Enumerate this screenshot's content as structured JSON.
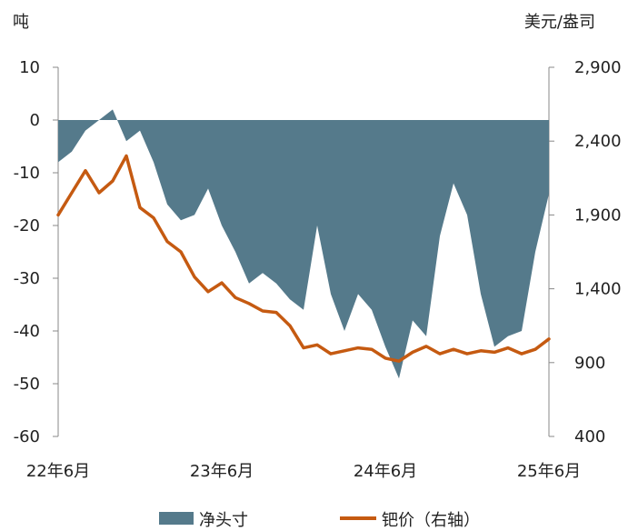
{
  "chart_data": {
    "type": "area",
    "left_unit": "吨",
    "right_unit": "美元/盎司",
    "left_axis": {
      "min": -60,
      "max": 10,
      "ticks": [
        10,
        0,
        -10,
        -20,
        -30,
        -40,
        -50,
        -60
      ],
      "tick_labels": [
        "10",
        "0",
        "-10",
        "-20",
        "-30",
        "-40",
        "-50",
        "-60"
      ]
    },
    "right_axis": {
      "min": 400,
      "max": 2900,
      "ticks": [
        2900,
        2400,
        1900,
        1400,
        900,
        400
      ],
      "tick_labels": [
        "2,900",
        "2,400",
        "1,900",
        "1,400",
        "900",
        "400"
      ]
    },
    "x_axis": {
      "start": "2022-06",
      "end": "2025-06",
      "tick_labels": [
        "22年6月",
        "23年6月",
        "24年6月",
        "25年6月"
      ]
    },
    "series": [
      {
        "name": "净头寸",
        "axis": "left",
        "color": "#557a8b",
        "x": [
          "2022-06",
          "2022-07",
          "2022-08",
          "2022-09",
          "2022-10",
          "2022-11",
          "2022-12",
          "2023-01",
          "2023-02",
          "2023-03",
          "2023-04",
          "2023-05",
          "2023-06",
          "2023-07",
          "2023-08",
          "2023-09",
          "2023-10",
          "2023-11",
          "2023-12",
          "2024-01",
          "2024-02",
          "2024-03",
          "2024-04",
          "2024-05",
          "2024-06",
          "2024-07",
          "2024-08",
          "2024-09",
          "2024-10",
          "2024-11",
          "2024-12",
          "2025-01",
          "2025-02",
          "2025-03",
          "2025-04",
          "2025-05",
          "2025-06"
        ],
        "values": [
          -8,
          -6,
          -2,
          0,
          2,
          -4,
          -2,
          -8,
          -16,
          -19,
          -18,
          -13,
          -20,
          -25,
          -31,
          -29,
          -31,
          -34,
          -36,
          -20,
          -33,
          -40,
          -33,
          -36,
          -43,
          -49,
          -38,
          -41,
          -22,
          -12,
          -18,
          -33,
          -43,
          -41,
          -40,
          -25,
          -14
        ]
      },
      {
        "name": "钯价（右轴）",
        "axis": "right",
        "color": "#c55a11",
        "x": [
          "2022-06",
          "2022-07",
          "2022-08",
          "2022-09",
          "2022-10",
          "2022-11",
          "2022-12",
          "2023-01",
          "2023-02",
          "2023-03",
          "2023-04",
          "2023-05",
          "2023-06",
          "2023-07",
          "2023-08",
          "2023-09",
          "2023-10",
          "2023-11",
          "2023-12",
          "2024-01",
          "2024-02",
          "2024-03",
          "2024-04",
          "2024-05",
          "2024-06",
          "2024-07",
          "2024-08",
          "2024-09",
          "2024-10",
          "2024-11",
          "2024-12",
          "2025-01",
          "2025-02",
          "2025-03",
          "2025-04",
          "2025-05",
          "2025-06"
        ],
        "values": [
          1900,
          2050,
          2200,
          2050,
          2130,
          2300,
          1950,
          1880,
          1720,
          1650,
          1480,
          1380,
          1440,
          1340,
          1300,
          1250,
          1240,
          1150,
          1000,
          1020,
          960,
          980,
          1000,
          990,
          930,
          910,
          970,
          1010,
          960,
          990,
          960,
          980,
          970,
          1000,
          960,
          990,
          1060
        ]
      }
    ],
    "legend": {
      "position": "bottom"
    }
  }
}
